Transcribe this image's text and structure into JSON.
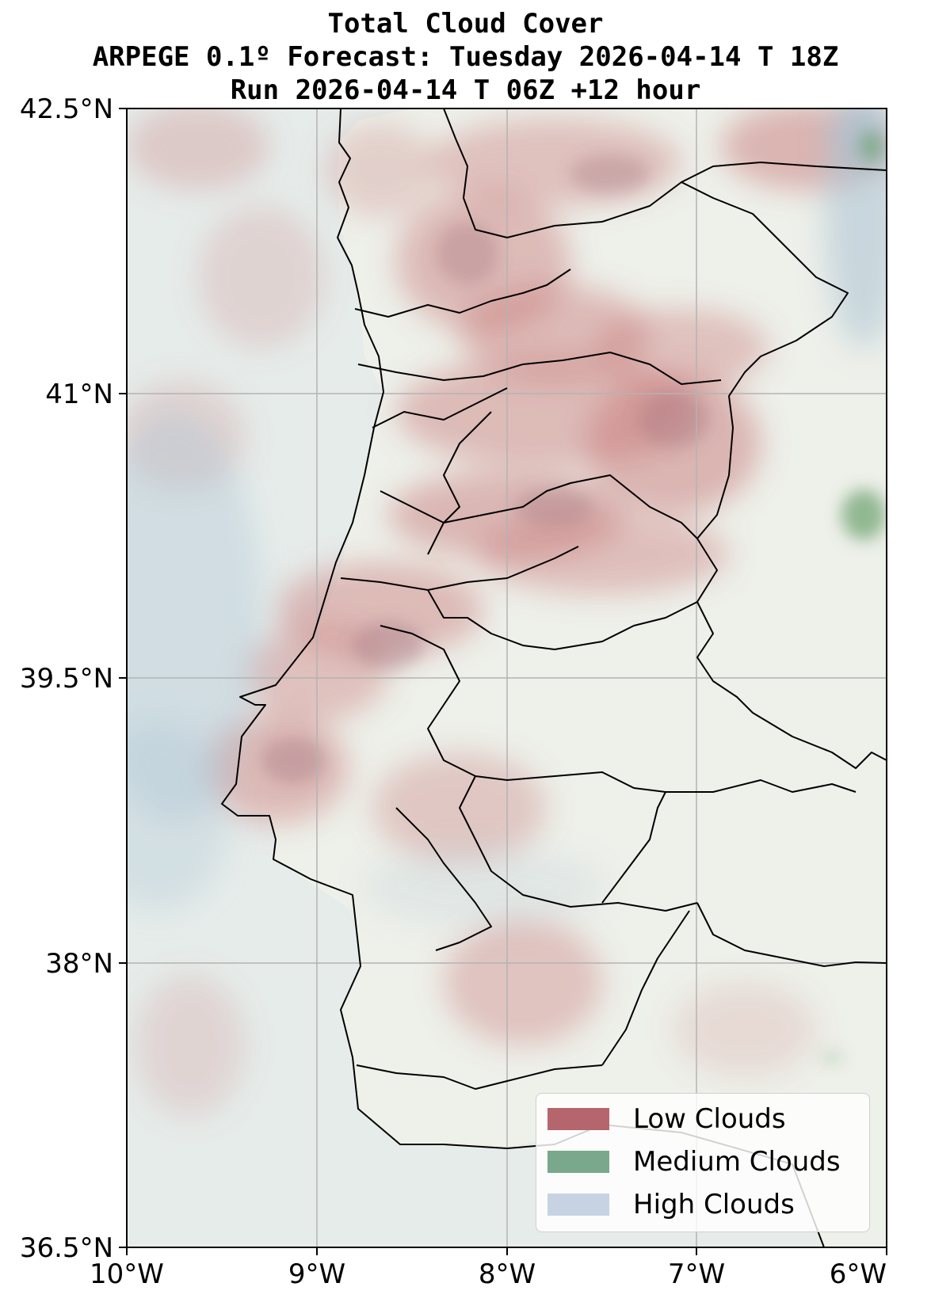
{
  "title": {
    "line1": "Total Cloud Cover",
    "line2": "ARPEGE 0.1º Forecast: Tuesday 2026-04-14 T 18Z",
    "line3": "Run 2026-04-14 T 06Z +12 hour"
  },
  "axes": {
    "lat_ticks": [
      "42.5°N",
      "41°N",
      "39.5°N",
      "38°N",
      "36.5°N"
    ],
    "lon_ticks": [
      "10°W",
      "9°W",
      "8°W",
      "7°W",
      "6°W"
    ],
    "lat_range": [
      36.5,
      42.5
    ],
    "lon_range": [
      -10,
      -6
    ],
    "grid": true
  },
  "legend": {
    "placement": "bottom-right",
    "items": [
      {
        "label": "Low Clouds",
        "color": "#b5666d"
      },
      {
        "label": "Medium Clouds",
        "color": "#7aa88c"
      },
      {
        "label": "High Clouds",
        "color": "#c7d3e3"
      }
    ]
  },
  "colors": {
    "land_base": "#eef0ea",
    "sea_base": "#dfe9e8",
    "low_cloud": "#c77a7a",
    "medium_cloud": "#5f9a63",
    "high_cloud": "#a9c2d3",
    "grid": "#b3b3b3",
    "border": "#000000"
  }
}
